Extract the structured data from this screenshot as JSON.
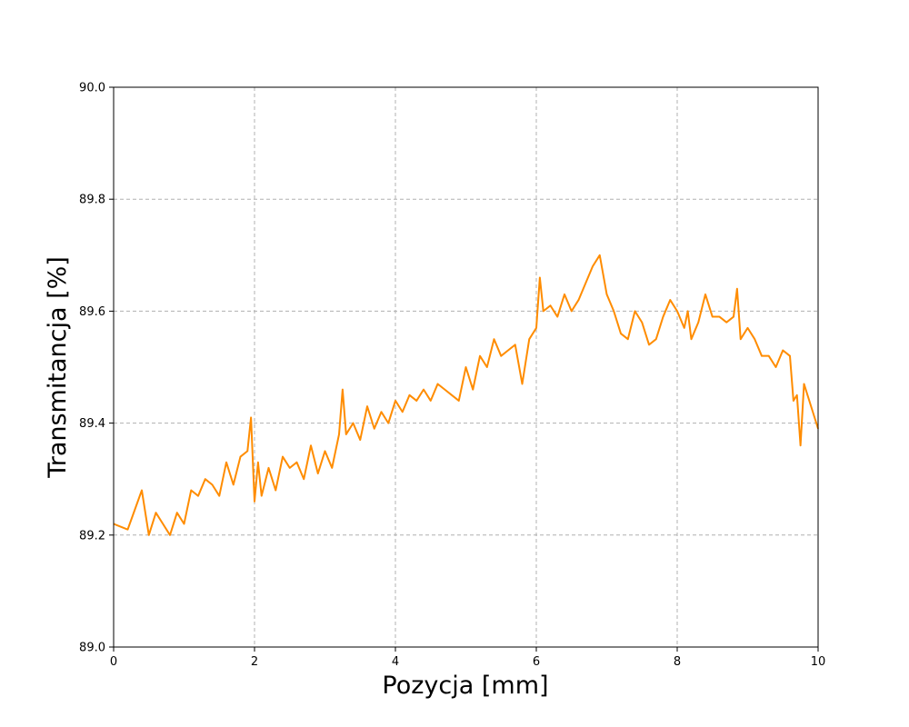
{
  "chart_data": {
    "type": "line",
    "title": "",
    "xlabel": "Pozycja [mm]",
    "ylabel": "Transmitancja [%]",
    "xlim": [
      0,
      10
    ],
    "ylim": [
      89.0,
      90.0
    ],
    "xticks": [
      0,
      2,
      4,
      6,
      8,
      10
    ],
    "yticks": [
      89.0,
      89.2,
      89.4,
      89.6,
      89.8,
      90.0
    ],
    "xtick_labels": [
      "0",
      "2",
      "4",
      "6",
      "8",
      "10"
    ],
    "ytick_labels": [
      "89.0",
      "89.2",
      "89.4",
      "89.6",
      "89.8",
      "90.0"
    ],
    "grid": true,
    "series": [
      {
        "color": "#ff8c00",
        "x": [
          0.0,
          0.2,
          0.4,
          0.5,
          0.6,
          0.7,
          0.8,
          0.9,
          1.0,
          1.1,
          1.2,
          1.3,
          1.4,
          1.5,
          1.6,
          1.7,
          1.8,
          1.9,
          1.95,
          2.0,
          2.05,
          2.1,
          2.2,
          2.3,
          2.4,
          2.5,
          2.6,
          2.7,
          2.8,
          2.9,
          3.0,
          3.1,
          3.2,
          3.25,
          3.3,
          3.4,
          3.5,
          3.6,
          3.7,
          3.8,
          3.9,
          4.0,
          4.1,
          4.2,
          4.3,
          4.4,
          4.5,
          4.6,
          4.7,
          4.8,
          4.9,
          5.0,
          5.1,
          5.2,
          5.3,
          5.4,
          5.5,
          5.6,
          5.7,
          5.8,
          5.9,
          6.0,
          6.05,
          6.1,
          6.2,
          6.3,
          6.4,
          6.5,
          6.6,
          6.7,
          6.8,
          6.9,
          7.0,
          7.1,
          7.2,
          7.3,
          7.4,
          7.5,
          7.6,
          7.7,
          7.8,
          7.9,
          8.0,
          8.1,
          8.15,
          8.2,
          8.3,
          8.4,
          8.5,
          8.6,
          8.7,
          8.8,
          8.85,
          8.9,
          9.0,
          9.1,
          9.2,
          9.3,
          9.4,
          9.5,
          9.6,
          9.65,
          9.7,
          9.75,
          9.8,
          9.85,
          9.9,
          10.0
        ],
        "y": [
          89.22,
          89.21,
          89.28,
          89.2,
          89.24,
          89.22,
          89.2,
          89.24,
          89.22,
          89.28,
          89.27,
          89.3,
          89.29,
          89.27,
          89.33,
          89.29,
          89.34,
          89.35,
          89.41,
          89.26,
          89.33,
          89.27,
          89.32,
          89.28,
          89.34,
          89.32,
          89.33,
          89.3,
          89.36,
          89.31,
          89.35,
          89.32,
          89.38,
          89.46,
          89.38,
          89.4,
          89.37,
          89.43,
          89.39,
          89.42,
          89.4,
          89.44,
          89.42,
          89.45,
          89.44,
          89.46,
          89.44,
          89.47,
          89.46,
          89.45,
          89.44,
          89.5,
          89.46,
          89.52,
          89.5,
          89.55,
          89.52,
          89.53,
          89.54,
          89.47,
          89.55,
          89.57,
          89.66,
          89.6,
          89.61,
          89.59,
          89.63,
          89.6,
          89.62,
          89.65,
          89.68,
          89.7,
          89.63,
          89.6,
          89.56,
          89.55,
          89.6,
          89.58,
          89.54,
          89.55,
          89.59,
          89.62,
          89.6,
          89.57,
          89.6,
          89.55,
          89.58,
          89.63,
          89.59,
          89.59,
          89.58,
          89.59,
          89.64,
          89.55,
          89.57,
          89.55,
          89.52,
          89.52,
          89.5,
          89.53,
          89.52,
          89.44,
          89.45,
          89.36,
          89.47,
          89.45,
          89.43,
          89.39
        ]
      }
    ]
  }
}
